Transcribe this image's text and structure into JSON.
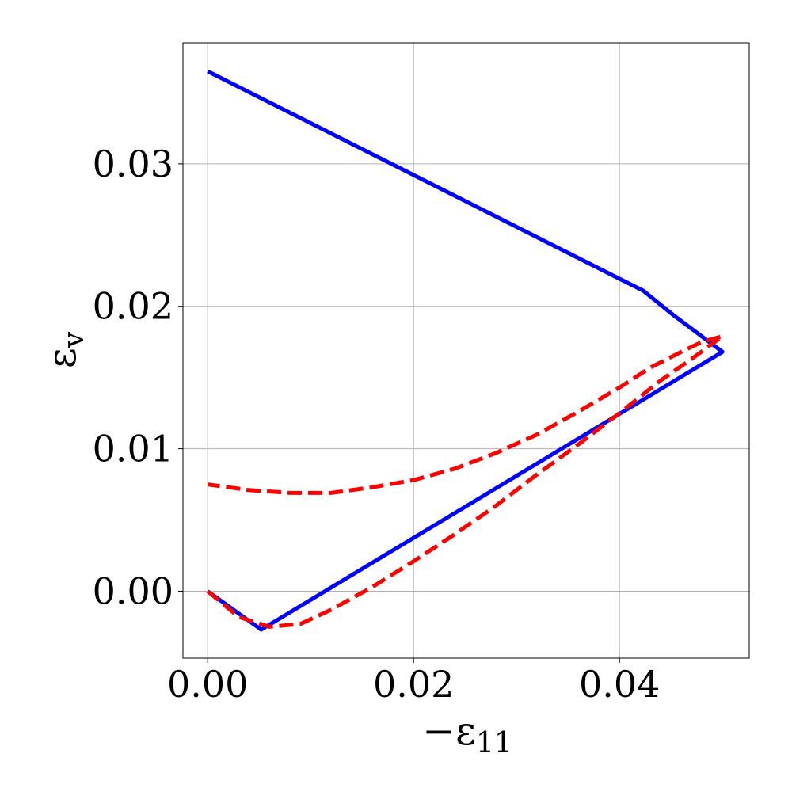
{
  "chart_data": {
    "type": "line",
    "title": "",
    "xlabel": {
      "prefix": "−ε",
      "sub": "11"
    },
    "ylabel": {
      "prefix": "ε",
      "sub": "v"
    },
    "xlim": [
      -0.0024,
      0.0526
    ],
    "ylim": [
      -0.0047,
      0.0385
    ],
    "grid": true,
    "x_ticks": [
      0.0,
      0.02,
      0.04
    ],
    "x_tick_labels": [
      "0.00",
      "0.02",
      "0.04"
    ],
    "y_ticks": [
      0.0,
      0.01,
      0.02,
      0.03
    ],
    "y_tick_labels": [
      "0.00",
      "0.01",
      "0.02",
      "0.03"
    ],
    "series": [
      {
        "color": "#0000ff",
        "style": "solid",
        "x": [
          0.0,
          0.0052,
          0.05,
          0.0452,
          0.0423,
          0.0
        ],
        "y": [
          0.0,
          -0.0027,
          0.0168,
          0.0194,
          0.0211,
          0.0365
        ]
      },
      {
        "color": "#ff0000",
        "style": "dashed",
        "x": [
          0.0,
          0.003,
          0.006,
          0.009,
          0.012,
          0.016,
          0.02,
          0.024,
          0.028,
          0.032,
          0.036,
          0.04,
          0.044,
          0.047,
          0.05,
          0.048,
          0.046,
          0.043,
          0.04,
          0.036,
          0.032,
          0.028,
          0.024,
          0.02,
          0.016,
          0.012,
          0.008,
          0.004,
          0.002,
          0.0
        ],
        "y": [
          0.0,
          -0.0018,
          -0.0025,
          -0.0023,
          -0.0013,
          0.0003,
          0.0021,
          0.004,
          0.006,
          0.0082,
          0.0103,
          0.0125,
          0.0148,
          0.0163,
          0.0179,
          0.0175,
          0.0168,
          0.0157,
          0.0143,
          0.0126,
          0.011,
          0.0097,
          0.0086,
          0.0078,
          0.0073,
          0.0069,
          0.0069,
          0.0071,
          0.0073,
          0.0075
        ]
      }
    ]
  }
}
